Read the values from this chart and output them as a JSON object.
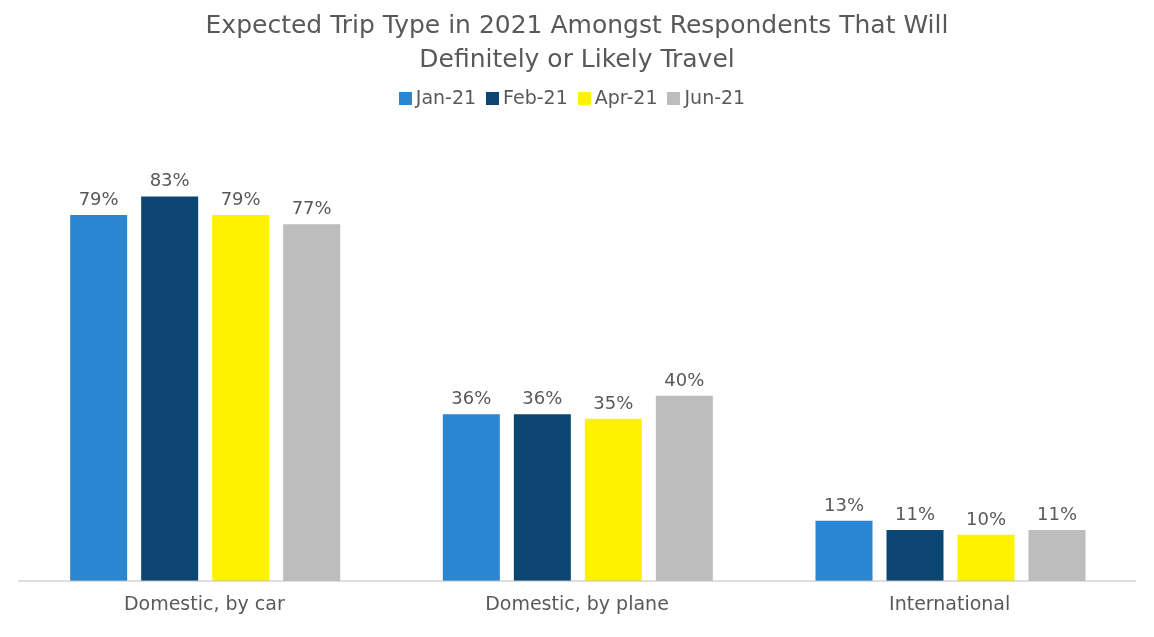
{
  "chart_data": {
    "type": "bar",
    "title": "Expected Trip Type in 2021 Amongst Respondents That Will Definitely or Likely Travel",
    "categories": [
      "Domestic, by car",
      "Domestic, by plane",
      "International"
    ],
    "legend": "top",
    "grid": false,
    "series": [
      {
        "name": "Jan-21",
        "color": "#2a86d1",
        "values": [
          79,
          36,
          13
        ],
        "value_labels": [
          "79%",
          "36%",
          "13%"
        ]
      },
      {
        "name": "Feb-21",
        "color": "#0b4672",
        "values": [
          83,
          36,
          11
        ],
        "value_labels": [
          "83%",
          "36%",
          "11%"
        ]
      },
      {
        "name": "Apr-21",
        "color": "#fff200",
        "values": [
          79,
          35,
          10
        ],
        "value_labels": [
          "79%",
          "35%",
          "10%"
        ]
      },
      {
        "name": "Jun-21",
        "color": "#bdbdbd",
        "values": [
          77,
          40,
          11
        ],
        "value_labels": [
          "77%",
          "40%",
          "11%"
        ]
      }
    ]
  }
}
